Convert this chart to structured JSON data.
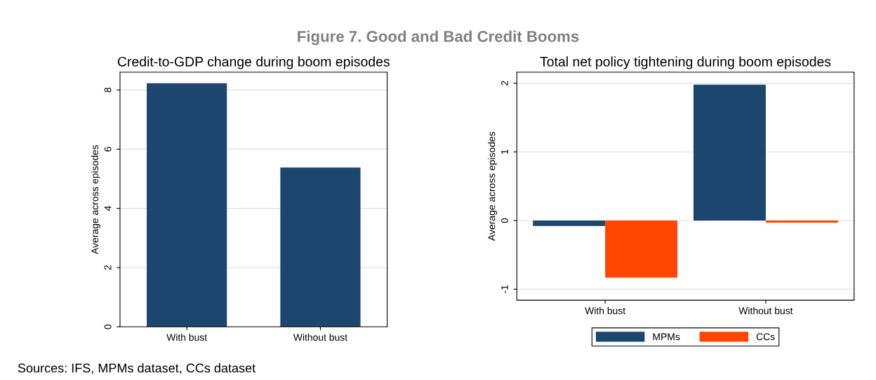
{
  "chart_data": [
    {
      "type": "bar",
      "title": "Credit-to-GDP change during boom episodes",
      "ylabel": "Average across episodes",
      "categories": [
        "With bust",
        "Without bust"
      ],
      "values": [
        8.23,
        5.38
      ],
      "color": "#1c466e",
      "ylim": [
        0,
        8.6
      ],
      "yticks": [
        0,
        2,
        4,
        6,
        8
      ],
      "grid": "y",
      "annotations": [
        "Figure 7. Good and Bad Credit Booms",
        "Sources: IFS, MPMs dataset, CCs dataset"
      ]
    },
    {
      "type": "bar",
      "title": "Total net policy tightening during boom episodes",
      "ylabel": "Average across episodes",
      "categories": [
        "With bust",
        "Without bust"
      ],
      "series": [
        {
          "name": "MPMs",
          "color": "#1c466e",
          "values": [
            -0.08,
            1.98
          ]
        },
        {
          "name": "CCs",
          "color": "#ff4500",
          "values": [
            -0.83,
            -0.03
          ]
        }
      ],
      "ylim": [
        -1.16,
        2.16
      ],
      "yticks": [
        -1,
        0,
        1,
        2
      ],
      "grid": "y",
      "legend": "bottom"
    }
  ]
}
